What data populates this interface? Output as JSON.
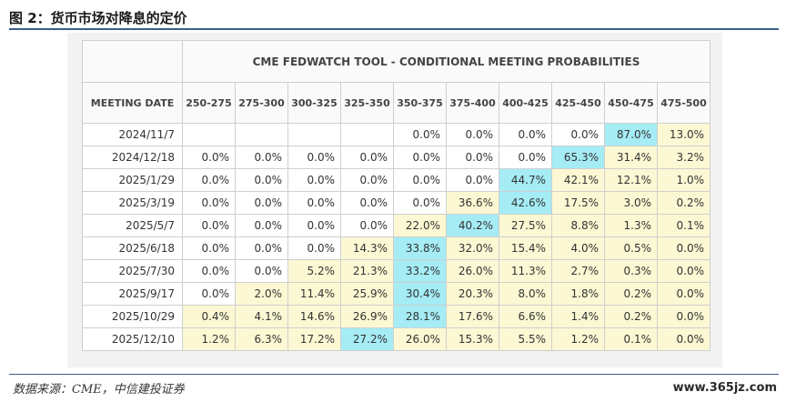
{
  "figure": {
    "title": "图 2：货币市场对降息的定价",
    "source": "数据来源：CME，中信建投证券",
    "watermark": "www.365jz.com"
  },
  "table": {
    "header": "CME FEDWATCH TOOL - CONDITIONAL MEETING PROBABILITIES",
    "date_column_label": "MEETING DATE",
    "columns": [
      "250-275",
      "275-300",
      "300-325",
      "325-350",
      "350-375",
      "375-400",
      "400-425",
      "425-450",
      "450-475",
      "475-500"
    ],
    "colors": {
      "white": "#ffffff",
      "yellow": "#fbf8d3",
      "blue": "#a5ecf5"
    },
    "rows": [
      {
        "date": "2024/11/7",
        "values": [
          "",
          "",
          "",
          "",
          "0.0%",
          "0.0%",
          "0.0%",
          "0.0%",
          "87.0%",
          "13.0%"
        ],
        "shades": [
          "w",
          "w",
          "w",
          "w",
          "w",
          "w",
          "w",
          "w",
          "b",
          "y"
        ]
      },
      {
        "date": "2024/12/18",
        "values": [
          "0.0%",
          "0.0%",
          "0.0%",
          "0.0%",
          "0.0%",
          "0.0%",
          "0.0%",
          "65.3%",
          "31.4%",
          "3.2%"
        ],
        "shades": [
          "w",
          "w",
          "w",
          "w",
          "w",
          "w",
          "w",
          "b",
          "y",
          "y"
        ]
      },
      {
        "date": "2025/1/29",
        "values": [
          "0.0%",
          "0.0%",
          "0.0%",
          "0.0%",
          "0.0%",
          "0.0%",
          "44.7%",
          "42.1%",
          "12.1%",
          "1.0%"
        ],
        "shades": [
          "w",
          "w",
          "w",
          "w",
          "w",
          "w",
          "b",
          "y",
          "y",
          "y"
        ]
      },
      {
        "date": "2025/3/19",
        "values": [
          "0.0%",
          "0.0%",
          "0.0%",
          "0.0%",
          "0.0%",
          "36.6%",
          "42.6%",
          "17.5%",
          "3.0%",
          "0.2%"
        ],
        "shades": [
          "w",
          "w",
          "w",
          "w",
          "w",
          "y",
          "b",
          "y",
          "y",
          "y"
        ]
      },
      {
        "date": "2025/5/7",
        "values": [
          "0.0%",
          "0.0%",
          "0.0%",
          "0.0%",
          "22.0%",
          "40.2%",
          "27.5%",
          "8.8%",
          "1.3%",
          "0.1%"
        ],
        "shades": [
          "w",
          "w",
          "w",
          "w",
          "y",
          "b",
          "y",
          "y",
          "y",
          "y"
        ]
      },
      {
        "date": "2025/6/18",
        "values": [
          "0.0%",
          "0.0%",
          "0.0%",
          "14.3%",
          "33.8%",
          "32.0%",
          "15.4%",
          "4.0%",
          "0.5%",
          "0.0%"
        ],
        "shades": [
          "w",
          "w",
          "w",
          "y",
          "b",
          "y",
          "y",
          "y",
          "y",
          "y"
        ]
      },
      {
        "date": "2025/7/30",
        "values": [
          "0.0%",
          "0.0%",
          "5.2%",
          "21.3%",
          "33.2%",
          "26.0%",
          "11.3%",
          "2.7%",
          "0.3%",
          "0.0%"
        ],
        "shades": [
          "w",
          "w",
          "y",
          "y",
          "b",
          "y",
          "y",
          "y",
          "y",
          "y"
        ]
      },
      {
        "date": "2025/9/17",
        "values": [
          "0.0%",
          "2.0%",
          "11.4%",
          "25.9%",
          "30.4%",
          "20.3%",
          "8.0%",
          "1.8%",
          "0.2%",
          "0.0%"
        ],
        "shades": [
          "w",
          "y",
          "y",
          "y",
          "b",
          "y",
          "y",
          "y",
          "y",
          "y"
        ]
      },
      {
        "date": "2025/10/29",
        "values": [
          "0.4%",
          "4.1%",
          "14.6%",
          "26.9%",
          "28.1%",
          "17.6%",
          "6.6%",
          "1.4%",
          "0.2%",
          "0.0%"
        ],
        "shades": [
          "y",
          "y",
          "y",
          "y",
          "b",
          "y",
          "y",
          "y",
          "y",
          "y"
        ]
      },
      {
        "date": "2025/12/10",
        "values": [
          "1.2%",
          "6.3%",
          "17.2%",
          "27.2%",
          "26.0%",
          "15.3%",
          "5.5%",
          "1.2%",
          "0.1%",
          "0.0%"
        ],
        "shades": [
          "y",
          "y",
          "y",
          "b",
          "y",
          "y",
          "y",
          "y",
          "y",
          "y"
        ]
      }
    ]
  }
}
